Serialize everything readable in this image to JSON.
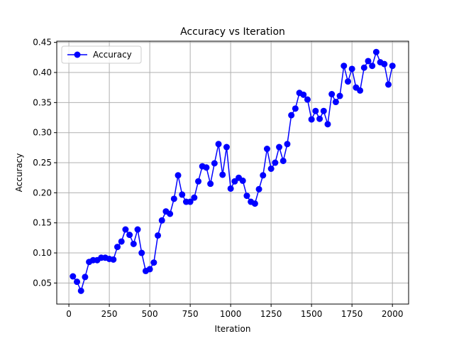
{
  "chart_data": {
    "type": "line",
    "title": "Accuracy vs Iteration",
    "xlabel": "Iteration",
    "ylabel": "Accuracy",
    "xlim": [
      -75,
      2100
    ],
    "ylim": [
      0.015,
      0.452
    ],
    "xticks": [
      0,
      250,
      500,
      750,
      1000,
      1250,
      1500,
      1750,
      2000
    ],
    "xtick_labels": [
      "0",
      "250",
      "500",
      "750",
      "1000",
      "1250",
      "1500",
      "1750",
      "2000"
    ],
    "yticks": [
      0.05,
      0.1,
      0.15,
      0.2,
      0.25,
      0.3,
      0.35,
      0.4,
      0.45
    ],
    "ytick_labels": [
      "0.05",
      "0.10",
      "0.15",
      "0.20",
      "0.25",
      "0.30",
      "0.35",
      "0.40",
      "0.45"
    ],
    "grid": true,
    "legend_position": "top-left",
    "series": [
      {
        "name": "Accuracy",
        "color": "#0000ff",
        "marker": "circle",
        "x": [
          25,
          50,
          75,
          100,
          125,
          150,
          175,
          200,
          225,
          250,
          275,
          300,
          325,
          350,
          375,
          400,
          425,
          450,
          475,
          500,
          525,
          550,
          575,
          600,
          625,
          650,
          675,
          700,
          725,
          750,
          775,
          800,
          825,
          850,
          875,
          900,
          925,
          950,
          975,
          1000,
          1025,
          1050,
          1075,
          1100,
          1125,
          1150,
          1175,
          1200,
          1225,
          1250,
          1275,
          1300,
          1325,
          1350,
          1375,
          1400,
          1425,
          1450,
          1475,
          1500,
          1525,
          1550,
          1575,
          1600,
          1625,
          1650,
          1675,
          1700,
          1725,
          1750,
          1775,
          1800,
          1825,
          1850,
          1875,
          1900,
          1925,
          1950,
          1975,
          2000
        ],
        "y": [
          0.061,
          0.052,
          0.037,
          0.06,
          0.085,
          0.088,
          0.088,
          0.092,
          0.092,
          0.09,
          0.089,
          0.11,
          0.119,
          0.139,
          0.13,
          0.115,
          0.139,
          0.1,
          0.07,
          0.073,
          0.084,
          0.129,
          0.154,
          0.169,
          0.165,
          0.19,
          0.229,
          0.197,
          0.185,
          0.185,
          0.192,
          0.219,
          0.244,
          0.242,
          0.215,
          0.249,
          0.281,
          0.23,
          0.276,
          0.207,
          0.219,
          0.225,
          0.22,
          0.195,
          0.185,
          0.182,
          0.206,
          0.229,
          0.273,
          0.24,
          0.25,
          0.276,
          0.253,
          0.281,
          0.329,
          0.34,
          0.366,
          0.363,
          0.355,
          0.322,
          0.336,
          0.323,
          0.336,
          0.314,
          0.364,
          0.351,
          0.361,
          0.411,
          0.385,
          0.406,
          0.375,
          0.37,
          0.408,
          0.419,
          0.411,
          0.434,
          0.417,
          0.414,
          0.38,
          0.411
        ]
      }
    ]
  }
}
